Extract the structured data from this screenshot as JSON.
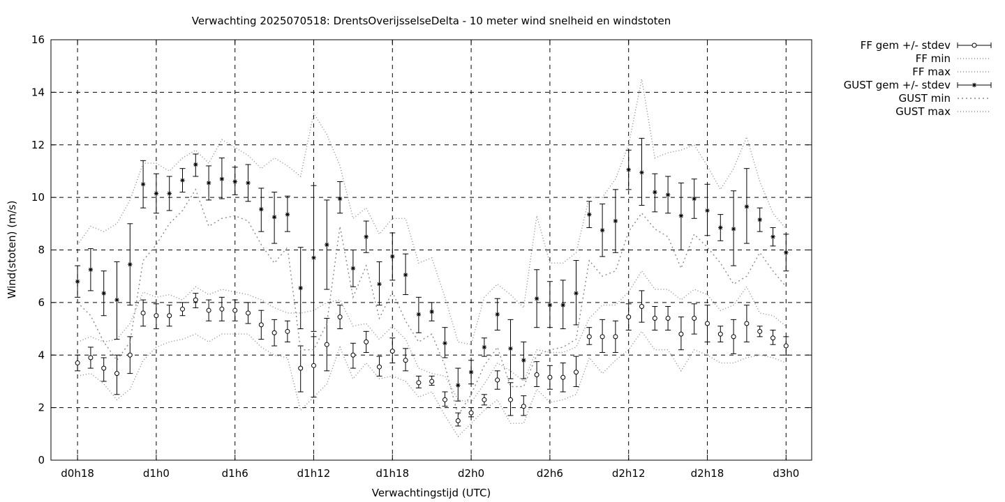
{
  "chart_data": {
    "type": "line",
    "title": "Verwachting 2025070518: DrentsOverijsselseDelta - 10 meter wind snelheid en windstoten",
    "xlabel": "Verwachtingstijd (UTC)",
    "ylabel": "Wind(stoten) (m/s)",
    "ylim": [
      0,
      16
    ],
    "xlim": [
      17,
      72
    ],
    "grid": true,
    "legend_position": "outside-right",
    "x_ticks": [
      18,
      24,
      30,
      36,
      42,
      48,
      54,
      60,
      66,
      72
    ],
    "x_tick_labels": [
      "d0h18",
      "d1h0",
      "d1h6",
      "d1h12",
      "d1h18",
      "d2h0",
      "d2h6",
      "d2h12",
      "d2h18",
      "d3h0"
    ],
    "y_ticks": [
      0,
      2,
      4,
      6,
      8,
      10,
      12,
      14,
      16
    ],
    "y_tick_labels": [
      "0",
      "2",
      "4",
      "6",
      "8",
      "10",
      "12",
      "14",
      "16"
    ],
    "x": [
      18,
      19,
      20,
      21,
      22,
      23,
      24,
      25,
      26,
      27,
      28,
      29,
      30,
      31,
      32,
      33,
      34,
      35,
      36,
      37,
      38,
      39,
      40,
      41,
      42,
      43,
      44,
      45,
      46,
      47,
      48,
      49,
      50,
      51,
      52,
      53,
      54,
      55,
      56,
      57,
      58,
      59,
      60,
      61,
      62,
      63,
      64,
      65,
      66,
      67,
      68,
      69,
      70,
      71,
      72
    ],
    "series": [
      {
        "name": "FF gem +/- stdev",
        "style": "errorbars-circle",
        "values": [
          3.7,
          3.9,
          3.5,
          3.3,
          4.0,
          5.6,
          5.5,
          5.5,
          5.75,
          6.1,
          5.7,
          5.75,
          5.7,
          5.6,
          5.15,
          4.85,
          4.9,
          3.5,
          3.6,
          4.4,
          5.45,
          4.0,
          4.5,
          3.55,
          4.15,
          3.8,
          2.95,
          3.0,
          2.3,
          1.5,
          1.8,
          2.3,
          3.05,
          2.3,
          2.05,
          3.25,
          3.15,
          3.15,
          3.35,
          4.7,
          4.7,
          4.7,
          5.45,
          5.85,
          5.4,
          5.4,
          4.8,
          5.4,
          5.2,
          4.8,
          4.7,
          5.2,
          4.9,
          4.65,
          4.35
        ],
        "lower": [
          3.4,
          3.5,
          3.0,
          2.5,
          3.3,
          5.1,
          5.0,
          5.1,
          5.5,
          5.8,
          5.3,
          5.3,
          5.3,
          5.2,
          4.6,
          4.35,
          4.5,
          2.6,
          2.4,
          3.4,
          5.0,
          3.5,
          4.1,
          3.2,
          3.7,
          3.4,
          2.75,
          2.85,
          2.05,
          1.3,
          1.65,
          2.1,
          2.7,
          1.7,
          1.7,
          2.8,
          2.7,
          2.6,
          2.8,
          4.4,
          4.1,
          4.1,
          4.95,
          5.25,
          4.95,
          4.95,
          4.2,
          4.8,
          4.5,
          4.5,
          4.05,
          4.5,
          4.7,
          4.4,
          4.0
        ],
        "upper": [
          4.0,
          4.3,
          3.9,
          4.0,
          4.7,
          6.1,
          5.95,
          5.9,
          6.0,
          6.35,
          6.1,
          6.2,
          6.1,
          6.0,
          5.7,
          5.35,
          5.3,
          4.35,
          4.7,
          5.4,
          5.9,
          4.45,
          4.9,
          3.95,
          4.65,
          4.25,
          3.2,
          3.2,
          2.6,
          1.8,
          2.0,
          2.5,
          3.4,
          2.95,
          2.45,
          3.75,
          3.6,
          3.7,
          3.95,
          5.05,
          5.35,
          5.3,
          5.95,
          6.45,
          5.85,
          5.85,
          5.45,
          5.95,
          5.9,
          5.1,
          5.35,
          5.9,
          5.1,
          4.95,
          4.7
        ]
      },
      {
        "name": "FF min",
        "style": "dotted",
        "values": [
          3.2,
          3.3,
          2.9,
          2.3,
          2.7,
          3.8,
          4.3,
          4.5,
          4.6,
          4.8,
          4.5,
          4.8,
          4.8,
          4.8,
          4.3,
          4.0,
          3.9,
          1.9,
          2.4,
          2.9,
          4.3,
          3.1,
          3.7,
          3.1,
          3.2,
          3.0,
          2.4,
          2.6,
          1.7,
          0.9,
          1.4,
          1.9,
          2.3,
          1.4,
          1.4,
          2.7,
          2.2,
          2.3,
          2.5,
          3.9,
          3.3,
          3.8,
          4.2,
          4.9,
          4.2,
          4.2,
          3.4,
          4.2,
          4.0,
          3.7,
          3.7,
          3.9,
          4.0,
          3.9,
          3.7
        ]
      },
      {
        "name": "FF max",
        "style": "dotted",
        "values": [
          4.5,
          4.7,
          4.5,
          4.6,
          5.2,
          6.4,
          6.2,
          6.3,
          6.1,
          6.6,
          6.3,
          6.5,
          6.4,
          6.3,
          6.1,
          5.8,
          5.6,
          5.6,
          5.7,
          6.0,
          6.1,
          5.1,
          5.2,
          4.6,
          5.1,
          4.6,
          3.5,
          3.3,
          3.2,
          2.3,
          2.2,
          2.9,
          3.7,
          3.4,
          3.0,
          4.2,
          4.1,
          4.1,
          4.3,
          5.4,
          5.9,
          5.9,
          6.4,
          7.2,
          6.5,
          6.5,
          6.1,
          6.5,
          6.3,
          5.7,
          5.9,
          6.6,
          5.6,
          5.5,
          5.1
        ]
      },
      {
        "name": "GUST gem +/- stdev",
        "style": "errorbars-star",
        "values": [
          6.8,
          7.25,
          6.35,
          6.1,
          7.45,
          10.5,
          10.15,
          10.15,
          10.65,
          11.25,
          10.55,
          10.7,
          10.6,
          10.55,
          9.55,
          9.25,
          9.35,
          6.55,
          7.7,
          8.2,
          9.95,
          7.3,
          8.5,
          6.7,
          7.75,
          7.05,
          5.55,
          5.65,
          4.45,
          2.85,
          3.35,
          4.3,
          5.55,
          4.25,
          3.8,
          6.15,
          5.9,
          5.9,
          6.35,
          9.35,
          8.75,
          9.1,
          11.05,
          10.95,
          10.2,
          10.1,
          9.3,
          9.95,
          9.5,
          8.85,
          8.8,
          9.65,
          9.15,
          8.5,
          7.9
        ],
        "lower": [
          6.2,
          6.45,
          5.5,
          4.6,
          5.9,
          9.6,
          9.4,
          9.5,
          10.2,
          10.8,
          9.9,
          9.95,
          10.1,
          9.85,
          8.7,
          8.25,
          8.7,
          5.0,
          4.9,
          6.5,
          9.4,
          6.6,
          7.9,
          5.9,
          6.85,
          6.3,
          4.85,
          5.3,
          3.9,
          2.25,
          2.9,
          3.95,
          4.95,
          3.1,
          3.1,
          5.05,
          5.05,
          5.0,
          5.15,
          8.85,
          7.75,
          7.9,
          10.3,
          9.7,
          9.45,
          9.4,
          8.0,
          9.2,
          8.55,
          8.35,
          7.4,
          8.25,
          8.7,
          8.15,
          7.2
        ],
        "upper": [
          7.4,
          8.05,
          7.2,
          7.55,
          9.0,
          11.4,
          10.9,
          10.8,
          11.1,
          11.65,
          11.2,
          11.5,
          11.15,
          11.25,
          10.35,
          10.2,
          10.05,
          8.1,
          10.45,
          9.9,
          10.6,
          8.0,
          9.1,
          7.55,
          8.65,
          7.85,
          6.2,
          6.0,
          5.05,
          3.5,
          3.8,
          4.65,
          6.15,
          5.35,
          4.5,
          7.25,
          6.8,
          6.85,
          7.6,
          9.85,
          9.75,
          10.3,
          11.8,
          12.25,
          10.9,
          10.8,
          10.55,
          10.7,
          10.5,
          9.35,
          10.25,
          11.1,
          9.6,
          8.85,
          8.6
        ]
      },
      {
        "name": "GUST min",
        "style": "dotted",
        "values": [
          6.0,
          5.5,
          4.5,
          3.8,
          4.5,
          7.6,
          8.2,
          9.0,
          9.5,
          10.3,
          8.9,
          9.2,
          9.3,
          9.1,
          8.2,
          7.5,
          8.1,
          4.2,
          4.2,
          5.2,
          8.9,
          6.2,
          7.4,
          5.4,
          6.4,
          5.3,
          4.5,
          4.8,
          3.6,
          1.7,
          2.5,
          3.6,
          4.3,
          2.8,
          2.8,
          4.0,
          4.2,
          4.3,
          4.6,
          7.6,
          7.0,
          7.2,
          8.7,
          9.4,
          8.8,
          8.5,
          7.3,
          8.6,
          8.1,
          7.5,
          6.7,
          7.0,
          7.9,
          7.2,
          6.6
        ]
      },
      {
        "name": "GUST max",
        "style": "dotted",
        "values": [
          8.2,
          8.9,
          8.7,
          9.0,
          9.9,
          11.3,
          11.3,
          11.0,
          11.5,
          11.8,
          11.3,
          12.2,
          11.9,
          11.6,
          11.1,
          11.5,
          11.2,
          10.8,
          13.2,
          12.4,
          11.2,
          9.2,
          9.6,
          8.6,
          9.2,
          9.2,
          7.5,
          7.7,
          6.2,
          4.5,
          4.4,
          6.2,
          6.7,
          6.3,
          5.8,
          9.3,
          7.5,
          7.5,
          7.9,
          10.0,
          10.0,
          10.7,
          12.0,
          14.5,
          11.5,
          11.7,
          11.8,
          12.0,
          11.2,
          10.3,
          11.1,
          12.3,
          10.6,
          9.4,
          8.8
        ]
      }
    ]
  }
}
